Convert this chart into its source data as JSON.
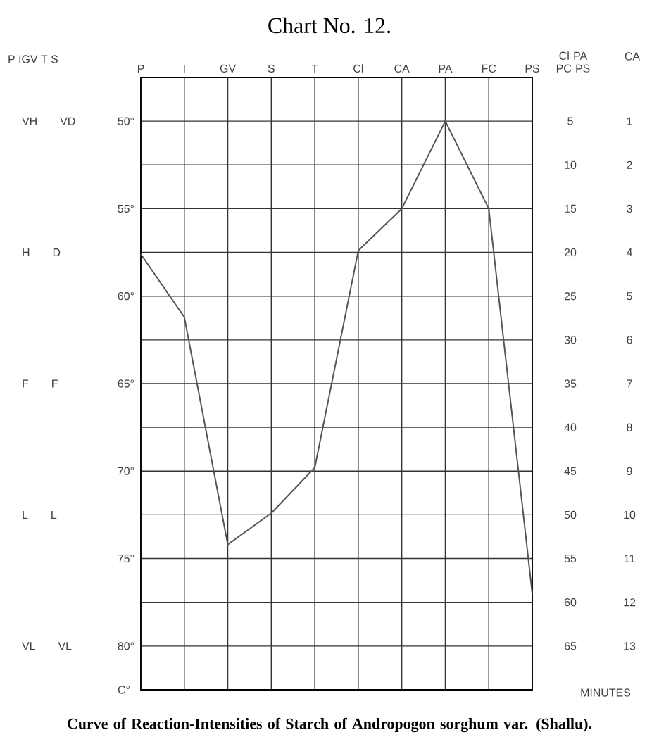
{
  "chart_data": {
    "type": "line",
    "title": "Chart No. 12.",
    "ylabel": "C°",
    "y2label": "Cl PA PC PS",
    "y3label": "CA",
    "categories": [
      "P",
      "I",
      "GV",
      "S",
      "T",
      "Cl",
      "CA",
      "PA",
      "FC",
      "PS"
    ],
    "series": [
      {
        "color": "#555555",
        "values": [
          57.6,
          61.2,
          74.2,
          72.4,
          69.8,
          57.4,
          55,
          50,
          55,
          77
        ]
      }
    ],
    "ylim": [
      82.5,
      47.5
    ],
    "yticks": [
      {
        "value": 50,
        "label": "50°"
      },
      {
        "value": 52.5,
        "label": null
      },
      {
        "value": 55,
        "label": "55°"
      },
      {
        "value": 57.5,
        "label": null
      },
      {
        "value": 60,
        "label": "60°"
      },
      {
        "value": 62.5,
        "label": null
      },
      {
        "value": 65,
        "label": "65°"
      },
      {
        "value": 67.5,
        "label": null
      },
      {
        "value": 70,
        "label": "70°"
      },
      {
        "value": 72.5,
        "label": null
      },
      {
        "value": 75,
        "label": "75°"
      },
      {
        "value": 77.5,
        "label": null
      },
      {
        "value": 80,
        "label": "80°"
      }
    ],
    "y2lim": [
      70,
      0
    ],
    "y2ticks": [
      5,
      10,
      15,
      20,
      25,
      30,
      35,
      40,
      45,
      50,
      55,
      60,
      65
    ],
    "y3lim": [
      14,
      0
    ],
    "y3ticks": [
      1,
      2,
      3,
      4,
      5,
      6,
      7,
      8,
      9,
      10,
      11,
      12,
      13
    ],
    "annotations": [
      "MINUTES",
      "Curve of Reaction-Intensities of Starch of Andropogon sorghum var. (Shallu).",
      "P IGV T S",
      "VH VD",
      "H D",
      "F F",
      "L L",
      "VL VL"
    ],
    "grid": true,
    "marker": "none",
    "line_style": "solid"
  }
}
